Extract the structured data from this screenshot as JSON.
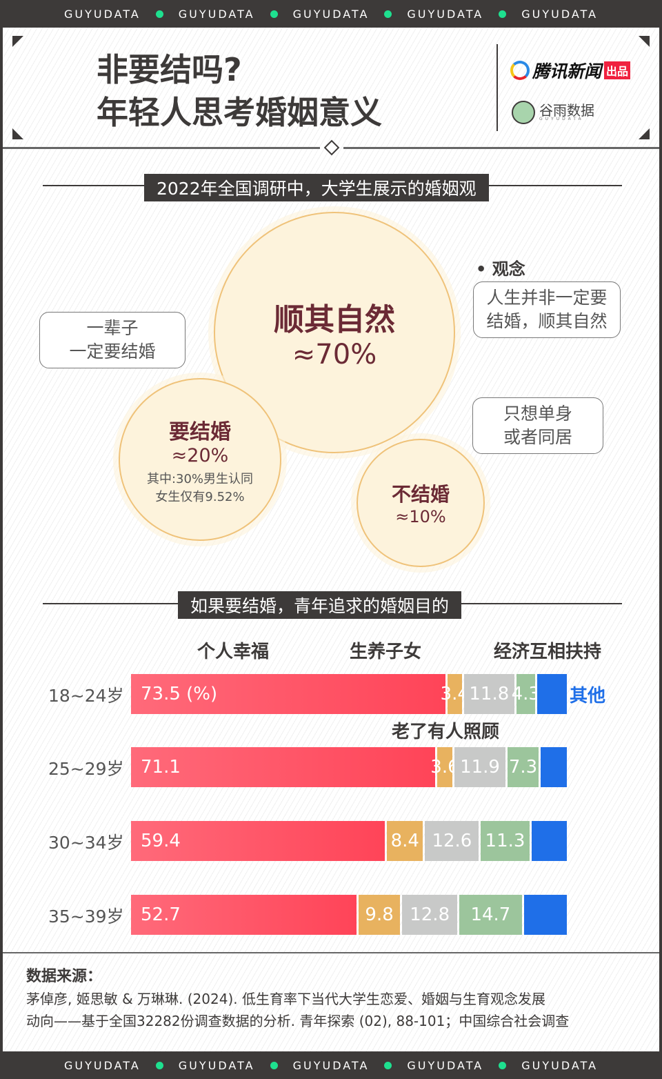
{
  "band": {
    "text": "GUYUDATA"
  },
  "header": {
    "title_line1": "非要结吗?",
    "title_line2": "年轻人思考婚姻意义",
    "brand1": "腾讯新闻",
    "brand1_tag": "出品",
    "brand2": "谷雨数据",
    "brand2_sub": "GUYUDATA"
  },
  "section1": {
    "title": "2022年全国调研中，大学生展示的婚姻观",
    "main": {
      "label": "顺其自然",
      "value": "≈70%"
    },
    "marry": {
      "label": "要结婚",
      "value": "≈20%",
      "note1": "其中:30%男生认同",
      "note2": "女生仅有9.52%"
    },
    "nomarry": {
      "label": "不结婚",
      "value": "≈10%"
    },
    "concept_title": "观念",
    "bubble_main": [
      "人生并非一定要",
      "结婚，顺其自然"
    ],
    "bubble_marry": [
      "一辈子",
      "一定要结婚"
    ],
    "bubble_no": [
      "只想单身",
      "或者同居"
    ]
  },
  "chart_data": {
    "type": "bar",
    "stacked": true,
    "orientation": "horizontal",
    "title": "如果要结婚，青年追求的婚姻目的",
    "unit": "%",
    "categories": [
      "18~24岁",
      "25~29岁",
      "30~34岁",
      "35~39岁"
    ],
    "series": [
      {
        "name": "个人幸福",
        "color": "#ff4d60",
        "values": [
          73.5,
          71.1,
          59.4,
          52.7
        ],
        "labels": [
          "73.5 (%)",
          "71.1",
          "59.4",
          "52.7"
        ]
      },
      {
        "name": "生养子女",
        "color": "#e8b25f",
        "values": [
          3.4,
          3.6,
          8.4,
          9.8
        ],
        "labels": [
          "3.4",
          "3.6",
          "8.4",
          "9.8"
        ]
      },
      {
        "name": "经济互相扶持",
        "color": "#c8c9c8",
        "values": [
          11.8,
          11.9,
          12.6,
          12.8
        ],
        "labels": [
          "11.8",
          "11.9",
          "12.6",
          "12.8"
        ]
      },
      {
        "name": "老了有人照顾",
        "color": "#9cc59c",
        "values": [
          4.3,
          7.3,
          11.3,
          14.7
        ],
        "labels": [
          "4.3",
          "7.3",
          "11.3",
          "14.7"
        ]
      },
      {
        "name": "其他",
        "color": "#1f6fe8",
        "values": [
          7.0,
          6.1,
          8.3,
          10.0
        ],
        "labels": [
          "",
          "",
          "",
          ""
        ]
      }
    ]
  },
  "source": {
    "title": "数据来源：",
    "line1": "茅倬彦, 姬思敏 & 万琳琳. (2024). 低生育率下当代大学生恋爱、婚姻与生育观念发展",
    "line2": "动向——基于全国32282份调查数据的分析. 青年探索 (02), 88-101；中国综合社会调查"
  }
}
